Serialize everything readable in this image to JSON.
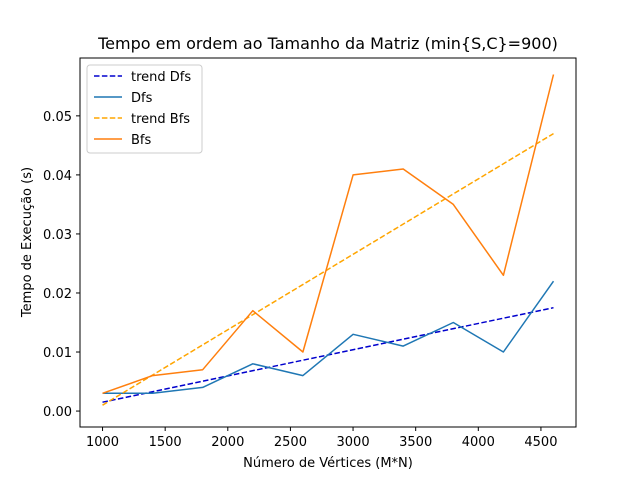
{
  "chart_data": {
    "type": "line",
    "title": "Tempo em ordem ao Tamanho da Matriz (min{S,C}=900)",
    "xlabel": "Número de Vértices (M*N)",
    "ylabel": "Tempo de Execução (s)",
    "xlim": [
      820,
      4780
    ],
    "ylim": [
      -0.0027,
      0.0598
    ],
    "xticks": [
      1000,
      1500,
      2000,
      2500,
      3000,
      3500,
      4000,
      4500
    ],
    "yticks": [
      0.0,
      0.01,
      0.02,
      0.03,
      0.04,
      0.05
    ],
    "ytick_labels": [
      "0.00",
      "0.01",
      "0.02",
      "0.03",
      "0.04",
      "0.05"
    ],
    "grid": false,
    "legend_position": "top-left",
    "x": [
      1000,
      1400,
      1800,
      2200,
      2600,
      3000,
      3400,
      3800,
      4200,
      4600
    ],
    "series": [
      {
        "name": "trend Dfs",
        "style": "dashed",
        "color": "#0000cd",
        "x": [
          1000,
          4600
        ],
        "values": [
          0.0015,
          0.0175
        ]
      },
      {
        "name": "Dfs",
        "style": "solid",
        "color": "#1f77b4",
        "values": [
          0.003,
          0.003,
          0.004,
          0.008,
          0.006,
          0.013,
          0.011,
          0.015,
          0.01,
          0.022
        ]
      },
      {
        "name": "trend Bfs",
        "style": "dashed",
        "color": "#ffa500",
        "x": [
          1000,
          4600
        ],
        "values": [
          0.001,
          0.047
        ]
      },
      {
        "name": "Bfs",
        "style": "solid",
        "color": "#ff7f0e",
        "values": [
          0.003,
          0.006,
          0.007,
          0.017,
          0.01,
          0.04,
          0.041,
          0.035,
          0.023,
          0.057
        ]
      }
    ]
  }
}
